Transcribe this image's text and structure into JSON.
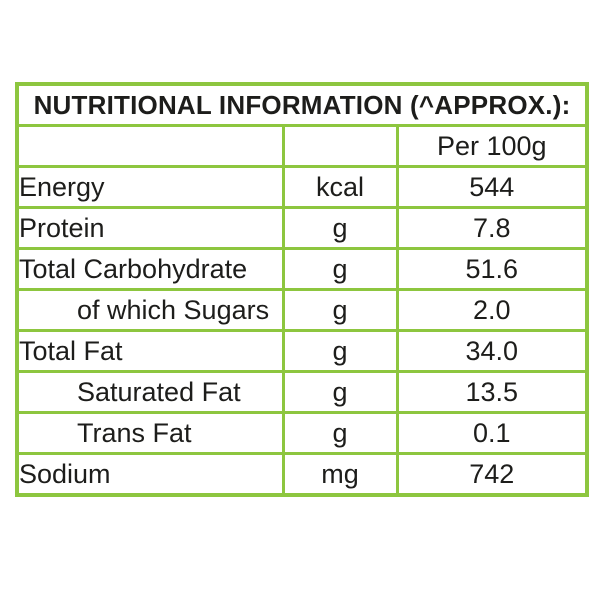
{
  "page": {
    "background_color": "#ffffff"
  },
  "table": {
    "title": "NUTRITIONAL INFORMATION (^APPROX.):",
    "border_color": "#8dc63f",
    "text_color": "#1d1d1b",
    "column_header": "Per 100g",
    "rows": [
      {
        "label": "Energy",
        "unit": "kcal",
        "value": "544",
        "indent": false
      },
      {
        "label": "Protein",
        "unit": "g",
        "value": "7.8",
        "indent": false
      },
      {
        "label": "Total Carbohydrate",
        "unit": "g",
        "value": "51.6",
        "indent": false
      },
      {
        "label": "of which Sugars",
        "unit": "g",
        "value": "2.0",
        "indent": true
      },
      {
        "label": "Total Fat",
        "unit": "g",
        "value": "34.0",
        "indent": false
      },
      {
        "label": "Saturated Fat",
        "unit": "g",
        "value": "13.5",
        "indent": true
      },
      {
        "label": "Trans Fat",
        "unit": "g",
        "value": "0.1",
        "indent": true
      },
      {
        "label": "Sodium",
        "unit": "mg",
        "value": "742",
        "indent": false
      }
    ]
  }
}
